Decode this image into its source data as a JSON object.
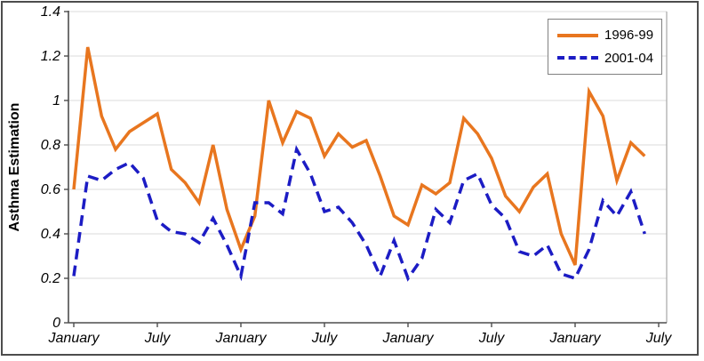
{
  "chart_data": {
    "type": "line",
    "title": "",
    "xlabel": "",
    "ylabel": "Asthma Estimation",
    "ylim": [
      0,
      1.4
    ],
    "y_ticks": [
      0,
      0.2,
      0.4,
      0.6,
      0.8,
      1,
      1.2,
      1.4
    ],
    "y_tick_labels": [
      "0",
      "0.2",
      "0.4",
      "0.6",
      "0.8",
      "1",
      "1.2",
      "1.4"
    ],
    "x_unit": "month",
    "n_points": 42,
    "x_tick_slots": [
      0,
      6,
      12,
      18,
      24,
      30,
      36,
      42
    ],
    "x_tick_labels": [
      "January",
      "July",
      "January",
      "July",
      "January",
      "July",
      "January",
      "July"
    ],
    "grid": "horizontal",
    "legend_position": "top-right",
    "series": [
      {
        "name": "1996-99",
        "color": "#E8761F",
        "line_style": "solid",
        "values": [
          0.6,
          1.24,
          0.93,
          0.78,
          0.86,
          0.9,
          0.94,
          0.69,
          0.63,
          0.54,
          0.8,
          0.51,
          0.33,
          0.48,
          1.0,
          0.81,
          0.95,
          0.92,
          0.75,
          0.85,
          0.79,
          0.82,
          0.66,
          0.48,
          0.44,
          0.62,
          0.58,
          0.63,
          0.92,
          0.85,
          0.74,
          0.57,
          0.5,
          0.61,
          0.67,
          0.4,
          0.26,
          1.04,
          0.93,
          0.64,
          0.81,
          0.75
        ]
      },
      {
        "name": "2001-04",
        "color": "#1C1CC4",
        "line_style": "dashed",
        "values": [
          0.21,
          0.66,
          0.64,
          0.69,
          0.72,
          0.65,
          0.46,
          0.41,
          0.4,
          0.36,
          0.47,
          0.35,
          0.21,
          0.54,
          0.54,
          0.49,
          0.78,
          0.67,
          0.5,
          0.52,
          0.45,
          0.35,
          0.21,
          0.37,
          0.2,
          0.29,
          0.51,
          0.45,
          0.64,
          0.67,
          0.53,
          0.47,
          0.32,
          0.3,
          0.35,
          0.22,
          0.2,
          0.33,
          0.55,
          0.48,
          0.59,
          0.4
        ]
      }
    ]
  },
  "colors": {
    "gridline": "#DBDBDB",
    "axis": "#4D4D4D",
    "plot_border_right": "#A6A6A6",
    "frame_border": "#4D4D4D",
    "legend_border": "#808080",
    "text": "#000000"
  }
}
